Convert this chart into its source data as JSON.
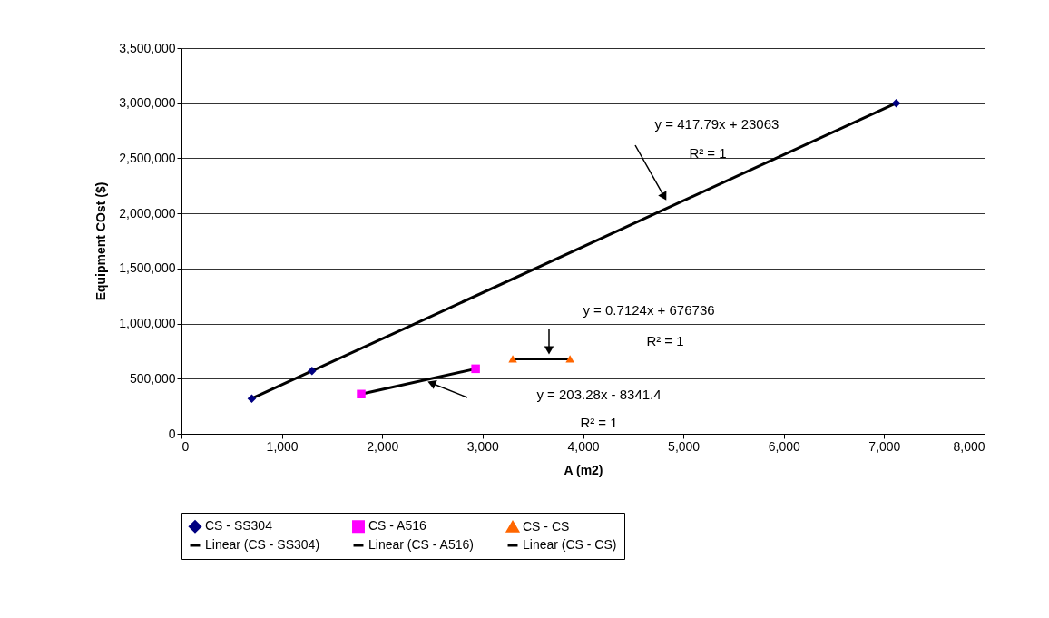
{
  "chart_data": {
    "type": "scatter",
    "xlabel": "A (m2)",
    "ylabel": "Equipment COst ($)",
    "xlim": [
      0,
      8000
    ],
    "xticks": [
      0,
      {
        "value": 1000,
        "label": "1,000"
      },
      {
        "value": 2000,
        "label": "2,000"
      },
      {
        "value": 3000,
        "label": "3,000"
      },
      {
        "value": 4000,
        "label": "4,000"
      },
      {
        "value": 5000,
        "label": "5,000"
      },
      {
        "value": 6000,
        "label": "6,000"
      },
      {
        "value": 7000,
        "label": "7,000"
      },
      {
        "value": 8000,
        "label": "8,000"
      }
    ],
    "ylim": [
      0,
      3500000
    ],
    "yticks": [
      0,
      {
        "value": 500000,
        "label": "500,000"
      },
      {
        "value": 1000000,
        "label": "1,000,000"
      },
      {
        "value": 1500000,
        "label": "1,500,000"
      },
      {
        "value": 2000000,
        "label": "2,000,000"
      },
      {
        "value": 2500000,
        "label": "2,500,000"
      },
      {
        "value": 3000000,
        "label": "3,000,000"
      },
      {
        "value": 3500000,
        "label": "3,500,000"
      }
    ],
    "grid": "y",
    "legend": "bottom",
    "series": [
      {
        "name": "CS - SS304",
        "marker": "diamond",
        "color": "#000080",
        "x": [
          700,
          1300,
          7120
        ],
        "values": [
          320000,
          570000,
          3000000
        ]
      },
      {
        "name": "CS - A516",
        "marker": "square",
        "color": "#ff00ff",
        "x": [
          1790,
          2930
        ],
        "values": [
          360000,
          590000
        ]
      },
      {
        "name": "CS - CS",
        "marker": "triangle",
        "color": "#ff6600",
        "x": [
          3300,
          3870
        ],
        "values": [
          680000,
          680000
        ]
      },
      {
        "name": "Linear (CS - SS304)",
        "type": "line",
        "marker": "none",
        "color": "#000000",
        "x": [
          700,
          7120
        ],
        "values": [
          320000,
          3000000
        ]
      },
      {
        "name": "Linear (CS - A516)",
        "type": "line",
        "marker": "none",
        "color": "#000000",
        "x": [
          1790,
          2930
        ],
        "values": [
          360000,
          590000
        ]
      },
      {
        "name": "Linear (CS - CS)",
        "type": "line",
        "marker": "none",
        "color": "#000000",
        "x": [
          3300,
          3870
        ],
        "values": [
          680000,
          680000
        ]
      }
    ],
    "annotations": [
      "y = 417.79x + 23063\nR² = 1",
      "y = 0.7124x + 676736\nR² = 1",
      "y = 203.28x - 8341.4\nR² = 1"
    ]
  }
}
